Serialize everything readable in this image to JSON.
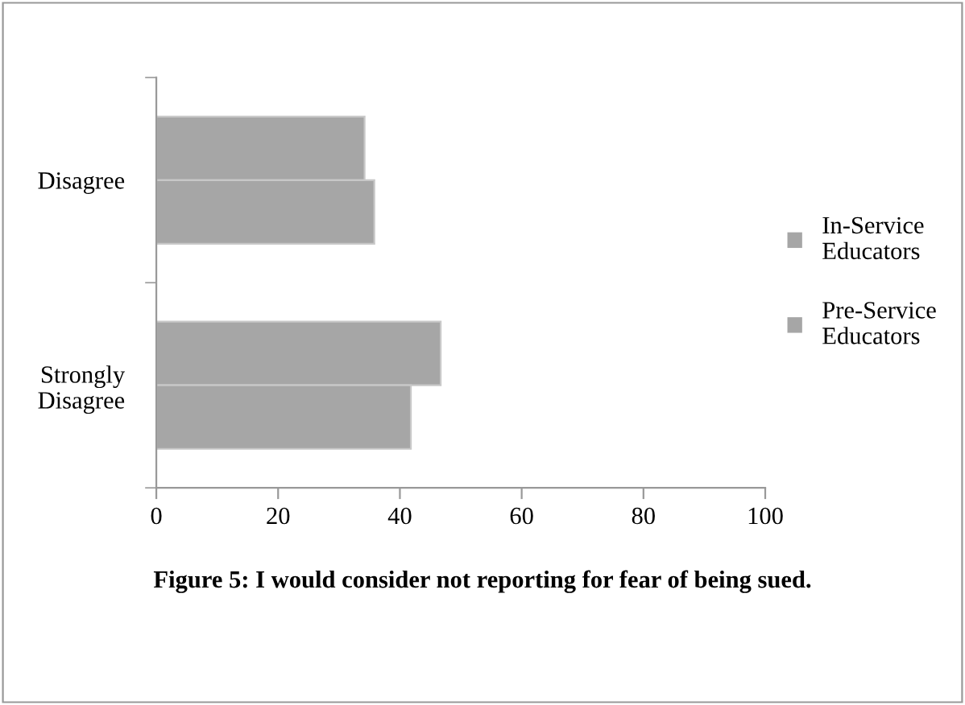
{
  "chart_data": {
    "type": "bar",
    "orientation": "horizontal",
    "title": "Figure 5: I would consider not reporting for fear of being sued.",
    "categories": [
      "Disagree",
      "Strongly Disagree"
    ],
    "series": [
      {
        "name": "In-Service Educators",
        "color": "#a6a6a6",
        "values": [
          34.2,
          46.7
        ]
      },
      {
        "name": "Pre-Service Educators",
        "color": "#a6a6a6",
        "values": [
          35.8,
          41.8
        ]
      }
    ],
    "xlim": [
      0,
      100
    ],
    "xticks": [
      0,
      20,
      40,
      60,
      80,
      100
    ],
    "grid": false,
    "legend": "right"
  }
}
